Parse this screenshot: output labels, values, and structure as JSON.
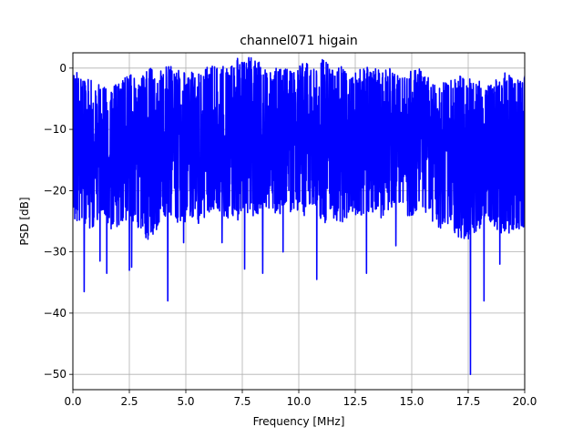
{
  "chart_data": {
    "type": "line",
    "title": "channel071 higain",
    "xlabel": "Frequency [MHz]",
    "ylabel": "PSD [dB]",
    "xlim": [
      0,
      20
    ],
    "ylim": [
      -52.5,
      2.5
    ],
    "xticks": [
      0,
      2.5,
      5,
      7.5,
      10,
      12.5,
      15,
      17.5,
      20
    ],
    "xtick_labels": [
      "0.0",
      "2.5",
      "5.0",
      "7.5",
      "10.0",
      "12.5",
      "15.0",
      "17.5",
      "20.0"
    ],
    "yticks": [
      0,
      -10,
      -20,
      -30,
      -40,
      -50
    ],
    "ytick_labels": [
      "0",
      "−10",
      "−20",
      "−30",
      "−40",
      "−50"
    ],
    "grid": true,
    "legend": "none",
    "series": [
      {
        "color": "#0000ff",
        "x_start": 0,
        "x_end": 20,
        "upper_envelope_db": [
          -2.5,
          -4.0,
          -4.5,
          -5.5,
          -6.0,
          -4.0,
          -3.5,
          -4.0,
          -2.5,
          -3.0,
          -2.0,
          -2.5,
          -3.0,
          -3.5,
          -2.0,
          -1.5,
          -2.5,
          -1.0,
          -0.2,
          -1.0,
          -2.0,
          -2.5,
          -2.0,
          -3.0,
          -1.5,
          -2.0,
          -1.0,
          -2.5,
          -2.0,
          -3.0,
          -2.5,
          -2.0,
          -3.0,
          -2.5,
          -4.0,
          -3.0,
          -2.5,
          -4.0,
          -4.5,
          -5.0,
          -3.5,
          -4.0,
          -4.5,
          -5.0,
          -4.0,
          -3.0,
          -4.5,
          -3.5
        ],
        "lower_envelope_db": [
          -22.0,
          -23.0,
          -24.0,
          -21.0,
          -24.0,
          -23.0,
          -22.0,
          -24.0,
          -26.0,
          -23.0,
          -21.0,
          -24.0,
          -22.0,
          -23.0,
          -22.0,
          -21.0,
          -22.0,
          -23.0,
          -21.0,
          -22.0,
          -20.0,
          -22.0,
          -21.0,
          -21.0,
          -22.0,
          -20.0,
          -23.0,
          -22.0,
          -23.0,
          -21.0,
          -22.0,
          -21.0,
          -22.0,
          -21.0,
          -20.0,
          -22.0,
          -21.0,
          -22.0,
          -24.0,
          -23.0,
          -25.0,
          -26.0,
          -24.0,
          -23.0,
          -24.0,
          -25.0,
          -24.0,
          -24.0
        ],
        "dips": [
          {
            "x": 0.5,
            "y": -36.5
          },
          {
            "x": 1.2,
            "y": -31.5
          },
          {
            "x": 1.5,
            "y": -33.5
          },
          {
            "x": 2.5,
            "y": -33.0
          },
          {
            "x": 2.6,
            "y": -32.5
          },
          {
            "x": 4.2,
            "y": -38.0
          },
          {
            "x": 4.9,
            "y": -28.5
          },
          {
            "x": 6.6,
            "y": -28.5
          },
          {
            "x": 7.6,
            "y": -32.8
          },
          {
            "x": 8.4,
            "y": -33.5
          },
          {
            "x": 9.3,
            "y": -30.0
          },
          {
            "x": 10.8,
            "y": -34.5
          },
          {
            "x": 13.0,
            "y": -33.5
          },
          {
            "x": 14.3,
            "y": -29.0
          },
          {
            "x": 17.6,
            "y": -50.0
          },
          {
            "x": 18.2,
            "y": -38.0
          },
          {
            "x": 18.9,
            "y": -32.0
          }
        ]
      }
    ]
  }
}
